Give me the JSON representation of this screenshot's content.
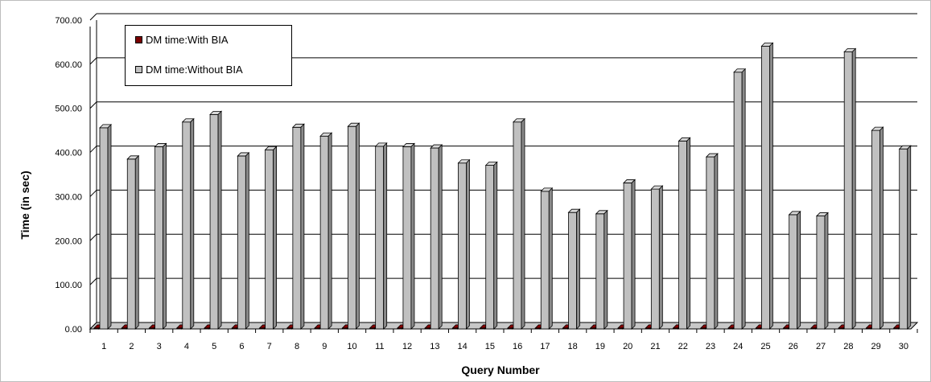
{
  "chart_data": {
    "type": "bar",
    "xlabel": "Query Number",
    "ylabel": "Time (in sec)",
    "ylim": [
      0,
      700
    ],
    "y_ticks": [
      "0.00",
      "100.00",
      "200.00",
      "300.00",
      "400.00",
      "500.00",
      "600.00",
      "700.00"
    ],
    "grid": true,
    "legend_position": "top-left",
    "categories": [
      "1",
      "2",
      "3",
      "4",
      "5",
      "6",
      "7",
      "8",
      "9",
      "10",
      "11",
      "12",
      "13",
      "14",
      "15",
      "16",
      "17",
      "18",
      "19",
      "20",
      "21",
      "22",
      "23",
      "24",
      "25",
      "26",
      "27",
      "28",
      "29",
      "30"
    ],
    "series": [
      {
        "name": "DM time:With BIA",
        "color": "#7a0000",
        "values": [
          2,
          2,
          2,
          2,
          2,
          2,
          2,
          2,
          2,
          2,
          2,
          2,
          2,
          2,
          2,
          2,
          2,
          2,
          2,
          2,
          2,
          2,
          2,
          2,
          2,
          2,
          2,
          2,
          2,
          2
        ]
      },
      {
        "name": "DM time:Without BIA",
        "color": "#c0c0c0",
        "values": [
          456,
          385,
          413,
          469,
          486,
          392,
          406,
          457,
          437,
          459,
          414,
          413,
          410,
          376,
          371,
          469,
          312,
          264,
          261,
          331,
          317,
          426,
          390,
          582,
          641,
          259,
          256,
          628,
          450,
          408
        ]
      }
    ]
  }
}
